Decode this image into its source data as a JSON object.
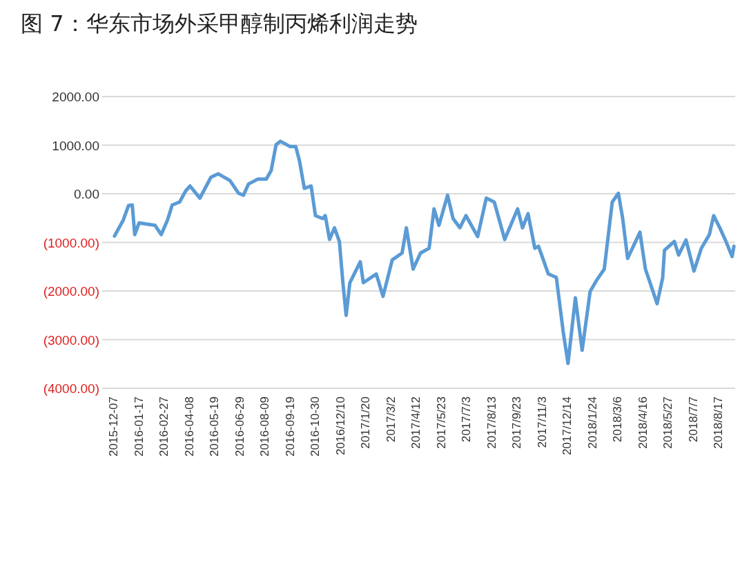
{
  "chart_data": {
    "type": "line",
    "title": "图 7：华东市场外采甲醇制丙烯利润走势",
    "x": [
      "2015-12-09",
      "2015-12-23",
      "2016-01-01",
      "2016-01-07",
      "2016-01-11",
      "2016-01-18",
      "2016-02-13",
      "2016-02-23",
      "2016-03-04",
      "2016-03-12",
      "2016-03-24",
      "2016-04-03",
      "2016-04-10",
      "2016-04-26",
      "2016-05-14",
      "2016-05-26",
      "2016-06-14",
      "2016-06-28",
      "2016-07-06",
      "2016-07-14",
      "2016-07-29",
      "2016-08-12",
      "2016-08-20",
      "2016-08-28",
      "2016-09-04",
      "2016-09-20",
      "2016-09-29",
      "2016-10-05",
      "2016-10-13",
      "2016-10-24",
      "2016-10-31",
      "2016-11-12",
      "2016-11-16",
      "2016-11-23",
      "2016-12-01",
      "2016-12-09",
      "2016-12-15",
      "2016-12-20",
      "2016-12-26",
      "2017-01-12",
      "2017-01-17",
      "2017-02-07",
      "2017-02-18",
      "2017-03-05",
      "2017-03-21",
      "2017-03-28",
      "2017-04-08",
      "2017-04-20",
      "2017-05-04",
      "2017-05-12",
      "2017-05-20",
      "2017-06-03",
      "2017-06-12",
      "2017-06-23",
      "2017-07-03",
      "2017-07-22",
      "2017-08-05",
      "2017-08-18",
      "2017-09-04",
      "2017-09-25",
      "2017-10-03",
      "2017-10-12",
      "2017-10-23",
      "2017-10-29",
      "2017-11-14",
      "2017-11-27",
      "2017-12-08",
      "2017-12-16",
      "2017-12-28",
      "2018-01-08",
      "2018-01-21",
      "2018-01-31",
      "2018-02-13",
      "2018-02-26",
      "2018-03-08",
      "2018-03-15",
      "2018-03-23",
      "2018-04-12",
      "2018-04-21",
      "2018-05-10",
      "2018-05-19",
      "2018-05-22",
      "2018-06-07",
      "2018-06-14",
      "2018-06-26",
      "2018-07-09",
      "2018-07-21",
      "2018-08-03",
      "2018-08-10",
      "2018-08-20",
      "2018-08-30",
      "2018-09-09",
      "2018-09-12"
    ],
    "series": [
      {
        "color": "#5b9bd5",
        "values": [
          -870,
          -550,
          -240,
          -230,
          -840,
          -600,
          -650,
          -840,
          -550,
          -230,
          -170,
          60,
          160,
          -90,
          340,
          410,
          270,
          10,
          -30,
          200,
          300,
          300,
          480,
          1010,
          1080,
          970,
          970,
          680,
          110,
          160,
          -450,
          -510,
          -450,
          -940,
          -700,
          -980,
          -1870,
          -2500,
          -1830,
          -1400,
          -1830,
          -1650,
          -2110,
          -1360,
          -1220,
          -700,
          -1550,
          -1220,
          -1120,
          -310,
          -650,
          -30,
          -510,
          -700,
          -450,
          -880,
          -90,
          -170,
          -940,
          -310,
          -700,
          -410,
          -1120,
          -1080,
          -1650,
          -1720,
          -2820,
          -3490,
          -2140,
          -3220,
          -2010,
          -1790,
          -1550,
          -170,
          10,
          -510,
          -1330,
          -790,
          -1550,
          -2260,
          -1730,
          -1160,
          -980,
          -1260,
          -950,
          -1590,
          -1120,
          -840,
          -450,
          -700,
          -980,
          -1290,
          -1080
        ]
      }
    ],
    "xlim": [
      "2015-11-19",
      "2018-09-14"
    ],
    "xticks": [
      {
        "value": "2015-12-07",
        "label": "2015-12-07"
      },
      {
        "value": "2016-01-17",
        "label": "2016-01-17"
      },
      {
        "value": "2016-02-27",
        "label": "2016-02-27"
      },
      {
        "value": "2016-04-08",
        "label": "2016-04-08"
      },
      {
        "value": "2016-05-19",
        "label": "2016-05-19"
      },
      {
        "value": "2016-06-29",
        "label": "2016-06-29"
      },
      {
        "value": "2016-08-09",
        "label": "2016-08-09"
      },
      {
        "value": "2016-09-19",
        "label": "2016-09-19"
      },
      {
        "value": "2016-10-30",
        "label": "2016-10-30"
      },
      {
        "value": "2016-12-10",
        "label": "2016/12/10"
      },
      {
        "value": "2017-01-20",
        "label": "2017/1/20"
      },
      {
        "value": "2017-03-02",
        "label": "2017/3/2"
      },
      {
        "value": "2017-04-12",
        "label": "2017/4/12"
      },
      {
        "value": "2017-05-23",
        "label": "2017/5/23"
      },
      {
        "value": "2017-07-03",
        "label": "2017/7/3"
      },
      {
        "value": "2017-08-13",
        "label": "2017/8/13"
      },
      {
        "value": "2017-09-23",
        "label": "2017/9/23"
      },
      {
        "value": "2017-11-03",
        "label": "2017/11/3"
      },
      {
        "value": "2017-12-14",
        "label": "2017/12/14"
      },
      {
        "value": "2018-01-24",
        "label": "2018/1/24"
      },
      {
        "value": "2018-03-06",
        "label": "2018/3/6"
      },
      {
        "value": "2018-04-16",
        "label": "2018/4/16"
      },
      {
        "value": "2018-05-27",
        "label": "2018/5/27"
      },
      {
        "value": "2018-07-07",
        "label": "2018/7/7"
      },
      {
        "value": "2018-08-17",
        "label": "2018/8/17"
      }
    ],
    "ylim": [
      -4000,
      2000
    ],
    "yticks": [
      {
        "value": 2000,
        "label": "2000.00"
      },
      {
        "value": 1000,
        "label": "1000.00"
      },
      {
        "value": 0,
        "label": "0.00"
      },
      {
        "value": -1000,
        "label": "(1000.00)"
      },
      {
        "value": -2000,
        "label": "(2000.00)"
      },
      {
        "value": -3000,
        "label": "(3000.00)"
      },
      {
        "value": -4000,
        "label": "(4000.00)"
      }
    ],
    "grid": "y",
    "marker": "none",
    "line_style": "solid"
  }
}
